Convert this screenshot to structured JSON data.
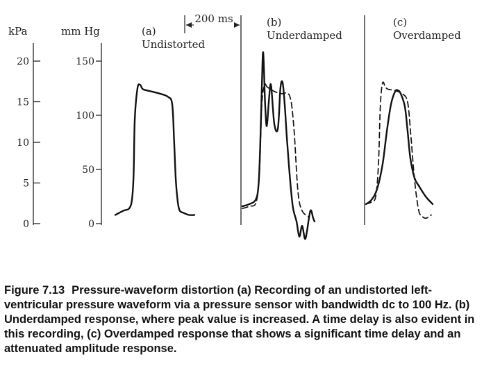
{
  "chart_data": {
    "type": "line",
    "title": "Pressure-waveform distortion",
    "axes": {
      "kpa": {
        "label": "kPa",
        "ticks": [
          20,
          15,
          10,
          5,
          0
        ],
        "range": [
          0,
          21
        ]
      },
      "mmhg": {
        "label": "mm Hg",
        "ticks": [
          150,
          100,
          50,
          0
        ],
        "range": [
          0,
          160
        ]
      }
    },
    "time_scale": {
      "label": "200 ms",
      "value_ms": 200
    },
    "panels": [
      {
        "id": "a",
        "letter": "(a)",
        "name": "Undistorted",
        "series": [
          {
            "name": "undistorted",
            "style": "solid",
            "t_ms": [
              0,
              30,
              50,
              60,
              66,
              70,
              80,
              90,
              100,
              130,
              160,
              190,
              205,
              212,
              218,
              225,
              232,
              245,
              265,
              285
            ],
            "mmhg": [
              8,
              12,
              14,
              22,
              45,
              95,
              125,
              128,
              124,
              122,
              120,
              117,
              110,
              75,
              40,
              20,
              12,
              10,
              8,
              8
            ]
          }
        ]
      },
      {
        "id": "b",
        "letter": "(b)",
        "name": "Underdamped",
        "series": [
          {
            "name": "reference",
            "style": "dashed",
            "t_ms": [
              0,
              25,
              50,
              62,
              70,
              80,
              90,
              115,
              140,
              170,
              185,
              200,
              215,
              240
            ],
            "mmhg": [
              14,
              16,
              20,
              50,
              110,
              128,
              126,
              122,
              120,
              118,
              90,
              30,
              12,
              6
            ]
          },
          {
            "name": "underdamped",
            "style": "solid",
            "t_ms": [
              0,
              25,
              48,
              58,
              64,
              70,
              75,
              82,
              88,
              96,
              103,
              115,
              128,
              137,
              145,
              153,
              160,
              172,
              182,
              195,
              205,
              215,
              225,
              232,
              245,
              255,
              260
            ],
            "mmhg": [
              16,
              18,
              22,
              35,
              70,
              125,
              158,
              110,
              90,
              115,
              128,
              92,
              88,
              125,
              130,
              108,
              80,
              40,
              15,
              2,
              -12,
              -2,
              -14,
              -8,
              12,
              5,
              2
            ]
          }
        ]
      },
      {
        "id": "c",
        "letter": "(c)",
        "name": "Overdamped",
        "series": [
          {
            "name": "reference",
            "style": "dashed",
            "t_ms": [
              0,
              20,
              35,
              45,
              52,
              60,
              70,
              80,
              100,
              130,
              150,
              162,
              175,
              190,
              205,
              215,
              225,
              235
            ],
            "mmhg": [
              18,
              20,
              25,
              55,
              110,
              130,
              126,
              124,
              123,
              120,
              112,
              80,
              40,
              12,
              6,
              5,
              6,
              8
            ]
          },
          {
            "name": "overdamped",
            "style": "solid",
            "t_ms": [
              0,
              20,
              40,
              60,
              75,
              90,
              105,
              115,
              125,
              140,
              150,
              160,
              175,
              190,
              215,
              240
            ],
            "mmhg": [
              18,
              22,
              32,
              55,
              85,
              110,
              122,
              123,
              120,
              108,
              85,
              60,
              42,
              35,
              25,
              18
            ]
          }
        ]
      }
    ]
  },
  "caption": {
    "number": "Figure 7.13",
    "text": "Pressure-waveform distortion (a) Recording of an undistorted left-ventricular pressure waveform via a pressure sensor with bandwidth dc to 100 Hz. (b) Underdamped response, where peak value is increased. A time delay is also evident in this recording, (c) Overdamped response that shows a significant time delay and an attenuated amplitude response."
  }
}
